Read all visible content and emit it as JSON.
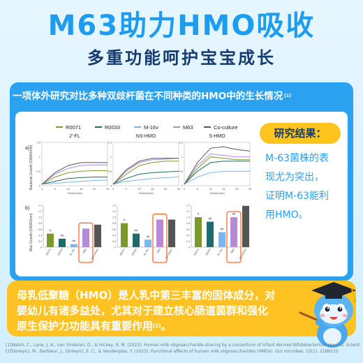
{
  "header": {
    "title": "M63助力HMO吸收",
    "subtitle": "多重功能呵护宝宝成长"
  },
  "panel": {
    "heading": "一项体外研究对比多种双歧杆菌在不同种类的HMO中的生长情况",
    "heading_ref": "[1]"
  },
  "result": {
    "tag": "研究结果：",
    "lines": [
      "M-63菌株的表",
      "现尤为突出，",
      "证明M-63能利",
      "用HMO。"
    ]
  },
  "bottom": {
    "lines": [
      "母乳低聚糖（HMO）是人乳中第三丰富的固体成分，对",
      "婴幼儿有诸多益处，尤其对于建立核心肠道菌群和强化",
      "原生保护力功能具有重要作用"
    ],
    "ref": "[2]",
    "end": "。"
  },
  "references": [
    "[1]Walsh, C., Lane, J. A., van Sinderen, D., & Hickey, R. M. (2022). Human milk oligosaccharide-sharing by a consortium of infant derived Bifidobacterium species. Scientific reports, 12(1), 4143",
    "[2]Dinleyici, M., Barbieur, J., Dinleyici, E. C., & Vandenplas, Y. (2023). Functional effects of human milk oligosaccharides (HMOs). Gut microbes, 15(1), 2186115"
  ],
  "colors": {
    "R0071": "#7a9a2a",
    "R0033": "#1f6b6b",
    "M-16v": "#7ab6ef",
    "M63": "#b68ad6",
    "Co-culture": "#555555",
    "highlight": "#ff6a2a"
  },
  "chart_data": [
    {
      "type": "line",
      "panel_label": "a)",
      "ylabel": "Bacterial Growth (OD600nm)",
      "series_names": [
        "R0071",
        "R0033",
        "M-16v",
        "M63",
        "Co-culture"
      ],
      "ylim": [
        0,
        1.5
      ],
      "yticks": [
        "0",
        "0.5",
        "1",
        "1.5"
      ],
      "xticks": [
        "0",
        "5",
        "10",
        "15",
        "20",
        "25"
      ],
      "xlabel": "Time(hours)",
      "x": [
        0,
        5,
        10,
        15,
        20,
        25
      ],
      "groups": [
        {
          "name": "2'-FL",
          "series": [
            {
              "name": "R0071",
              "values": [
                0.05,
                0.3,
                0.45,
                0.5,
                0.52,
                0.52
              ]
            },
            {
              "name": "R0033",
              "values": [
                0.05,
                0.15,
                0.25,
                0.28,
                0.3,
                0.3
              ]
            },
            {
              "name": "M-16v",
              "values": [
                0.05,
                0.08,
                0.12,
                0.15,
                0.18,
                0.2
              ]
            },
            {
              "name": "M63",
              "values": [
                0.05,
                0.4,
                0.6,
                0.7,
                0.72,
                0.72
              ]
            },
            {
              "name": "Co-culture",
              "values": [
                0.05,
                0.45,
                0.7,
                0.8,
                0.8,
                0.8
              ]
            }
          ]
        },
        {
          "name": "NS-HMO",
          "series": [
            {
              "name": "R0071",
              "values": [
                0.05,
                0.4,
                0.7,
                0.8,
                0.85,
                0.85
              ]
            },
            {
              "name": "R0033",
              "values": [
                0.05,
                0.25,
                0.4,
                0.45,
                0.48,
                0.5
              ]
            },
            {
              "name": "M-16v",
              "values": [
                0.05,
                0.15,
                0.2,
                0.25,
                0.28,
                0.3
              ]
            },
            {
              "name": "M63",
              "values": [
                0.05,
                0.5,
                0.8,
                0.9,
                0.92,
                0.95
              ]
            },
            {
              "name": "Co-culture",
              "values": [
                0.05,
                0.55,
                0.85,
                0.95,
                0.95,
                0.95
              ]
            }
          ]
        },
        {
          "name": "S-HMO",
          "series": [
            {
              "name": "R0071",
              "values": [
                0.05,
                0.6,
                1.0,
                0.95,
                0.9,
                0.9
              ]
            },
            {
              "name": "R0033",
              "values": [
                0.05,
                0.5,
                0.8,
                0.85,
                0.85,
                0.85
              ]
            },
            {
              "name": "M-16v",
              "values": [
                0.05,
                0.3,
                0.45,
                0.5,
                0.5,
                0.5
              ]
            },
            {
              "name": "M63",
              "values": [
                0.05,
                0.7,
                1.1,
                1.05,
                1.0,
                1.0
              ]
            },
            {
              "name": "Co-culture",
              "values": [
                0.05,
                0.8,
                1.3,
                1.35,
                1.25,
                1.2
              ]
            }
          ]
        }
      ]
    },
    {
      "type": "bar",
      "panel_label": "b)",
      "ylabel": "Max Growth (OD600nm)",
      "ylim": [
        0,
        1.4
      ],
      "yticks": [
        "0",
        "0.2",
        "0.4",
        "0.6",
        "0.8",
        "1.0",
        "1.2",
        "1.4"
      ],
      "categories": [
        "R0071",
        "R0033",
        "M. 16v",
        "M63",
        "Co-culture"
      ],
      "groups": [
        {
          "name": "2'-FL",
          "values": [
            0.45,
            0.28,
            0.1,
            0.62,
            0.75
          ],
          "marks": [
            "#",
            "##",
            "##",
            "",
            ""
          ],
          "highlight": "M63"
        },
        {
          "name": "NS-HMO",
          "values": [
            0.8,
            0.45,
            0.25,
            0.92,
            0.92
          ],
          "marks": [
            "#",
            "##",
            "##",
            "",
            ""
          ],
          "highlight": "M63"
        },
        {
          "name": "S-HMO",
          "values": [
            1.0,
            0.85,
            0.5,
            1.0,
            1.38
          ],
          "marks": [
            "#",
            "##",
            "##",
            "##",
            ""
          ],
          "highlight": "M63"
        }
      ]
    }
  ]
}
